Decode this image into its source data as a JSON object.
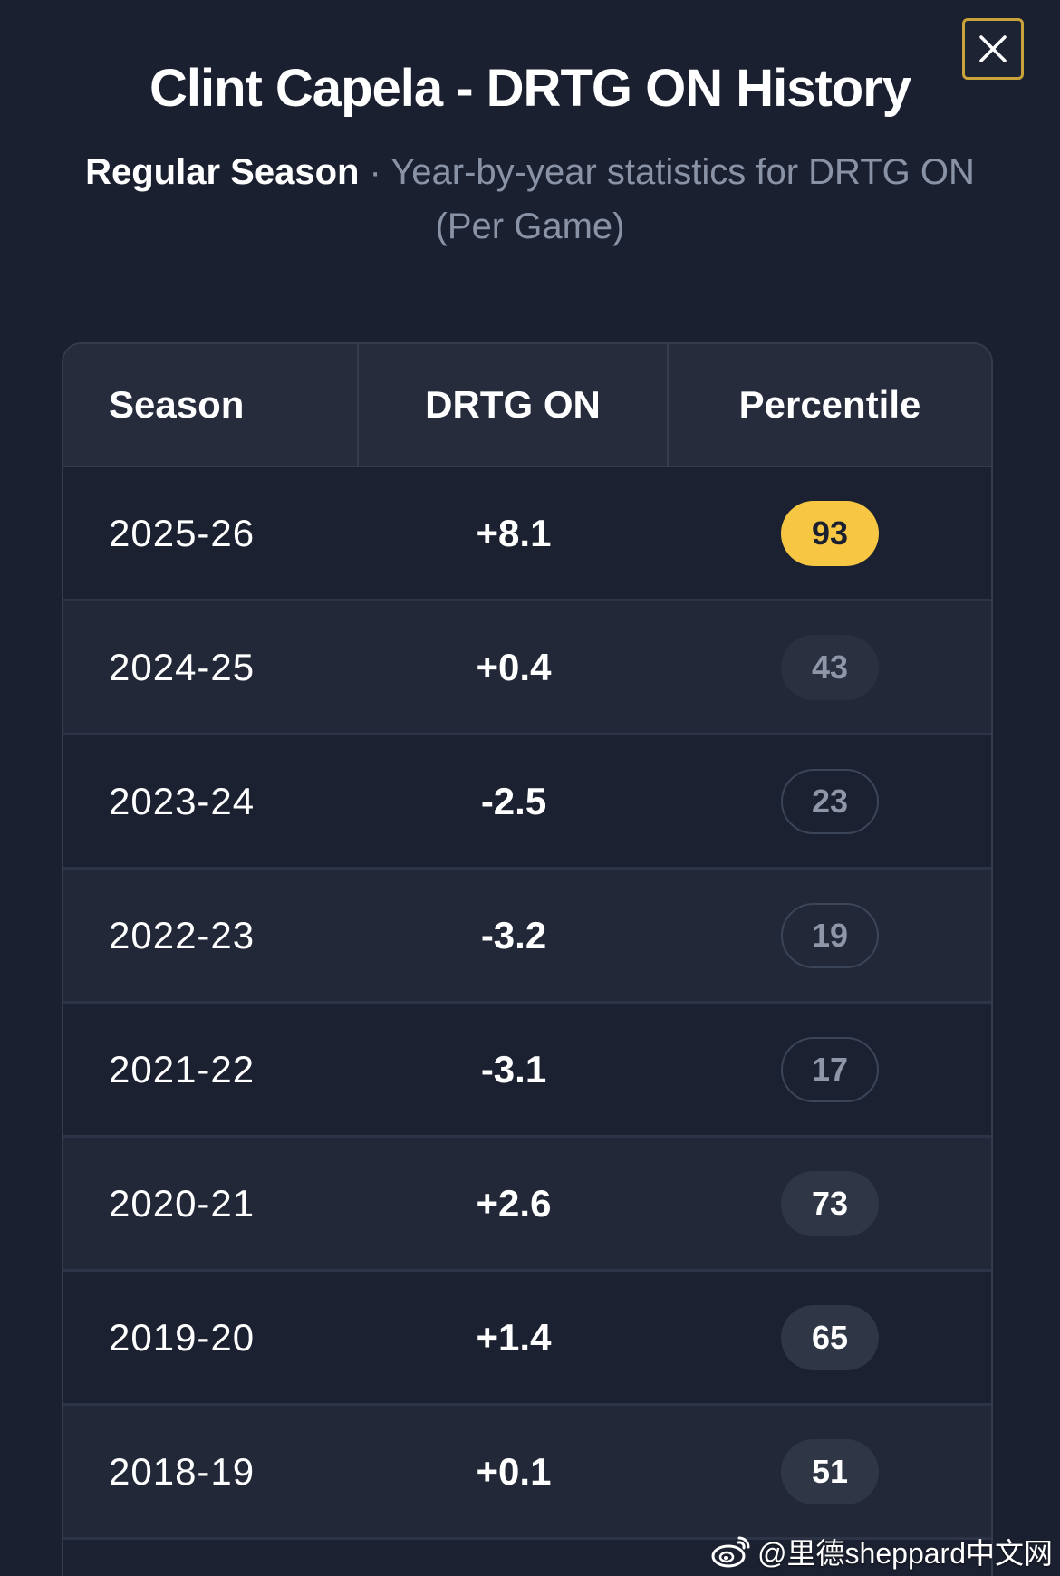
{
  "modal": {
    "title": "Clint Capela - DRTG ON History",
    "subtitle_season_type": "Regular Season",
    "subtitle_separator": " · ",
    "subtitle_description": "Year-by-year statistics for DRTG ON (Per Game)",
    "close_icon": "close-icon"
  },
  "table": {
    "headers": [
      "Season",
      "DRTG ON",
      "Percentile"
    ],
    "rows": [
      {
        "season": "2025-26",
        "drtg": "+8.1",
        "percentile": "93"
      },
      {
        "season": "2024-25",
        "drtg": "+0.4",
        "percentile": "43"
      },
      {
        "season": "2023-24",
        "drtg": "-2.5",
        "percentile": "23"
      },
      {
        "season": "2022-23",
        "drtg": "-3.2",
        "percentile": "19"
      },
      {
        "season": "2021-22",
        "drtg": "-3.1",
        "percentile": "17"
      },
      {
        "season": "2020-21",
        "drtg": "+2.6",
        "percentile": "73"
      },
      {
        "season": "2019-20",
        "drtg": "+1.4",
        "percentile": "65"
      },
      {
        "season": "2018-19",
        "drtg": "+0.1",
        "percentile": "51"
      }
    ]
  },
  "colors": {
    "background": "#1b2030",
    "accent_gold": "#f7c744",
    "close_border": "#c9a33a"
  },
  "watermark": {
    "text": "@里德sheppard中文网",
    "icon": "weibo-icon"
  }
}
